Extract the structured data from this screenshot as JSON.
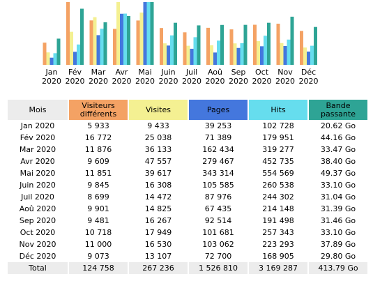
{
  "colors": {
    "visitors": "#F4A264",
    "visits": "#F4F092",
    "pages": "#4477DD",
    "hits": "#66DDEE",
    "bandwidth": "#2EA495"
  },
  "chart_data": {
    "type": "bar",
    "categories": [
      [
        "Jan",
        "2020"
      ],
      [
        "Fév",
        "2020"
      ],
      [
        "Mar",
        "2020"
      ],
      [
        "Avr",
        "2020"
      ],
      [
        "Mai",
        "2020"
      ],
      [
        "Juin",
        "2020"
      ],
      [
        "Juil",
        "2020"
      ],
      [
        "Aoû",
        "2020"
      ],
      [
        "Sep",
        "2020"
      ],
      [
        "Oct",
        "2020"
      ],
      [
        "Nov",
        "2020"
      ],
      [
        "Déc",
        "2020"
      ]
    ],
    "series": [
      {
        "key": "visitors",
        "values": [
          5933,
          16772,
          11876,
          9609,
          11851,
          9845,
          8699,
          9901,
          9481,
          10718,
          11000,
          9073
        ]
      },
      {
        "key": "visits",
        "values": [
          9433,
          25038,
          36133,
          47557,
          39617,
          16308,
          14472,
          14825,
          16267,
          17949,
          16530,
          13107
        ]
      },
      {
        "key": "pages",
        "values": [
          39253,
          71389,
          162434,
          279467,
          343314,
          105585,
          87976,
          67435,
          92514,
          101681,
          103062,
          72700
        ]
      },
      {
        "key": "hits",
        "values": [
          102728,
          179951,
          319277,
          452735,
          554569,
          260538,
          244302,
          214148,
          191498,
          257343,
          223293,
          168905
        ]
      },
      {
        "key": "bandwidth",
        "values": [
          20.62,
          44.16,
          33.47,
          38.4,
          49.37,
          33.1,
          31.04,
          31.39,
          31.46,
          33.1,
          37.89,
          29.8
        ]
      }
    ]
  },
  "table": {
    "headers": [
      "Mois",
      "Visiteurs différents",
      "Visites",
      "Pages",
      "Hits",
      "Bande passante"
    ],
    "rows": [
      [
        "Jan 2020",
        "5 933",
        "9 433",
        "39 253",
        "102 728",
        "20.62 Go"
      ],
      [
        "Fév 2020",
        "16 772",
        "25 038",
        "71 389",
        "179 951",
        "44.16 Go"
      ],
      [
        "Mar 2020",
        "11 876",
        "36 133",
        "162 434",
        "319 277",
        "33.47 Go"
      ],
      [
        "Avr 2020",
        "9 609",
        "47 557",
        "279 467",
        "452 735",
        "38.40 Go"
      ],
      [
        "Mai 2020",
        "11 851",
        "39 617",
        "343 314",
        "554 569",
        "49.37 Go"
      ],
      [
        "Juin 2020",
        "9 845",
        "16 308",
        "105 585",
        "260 538",
        "33.10 Go"
      ],
      [
        "Juil 2020",
        "8 699",
        "14 472",
        "87 976",
        "244 302",
        "31.04 Go"
      ],
      [
        "Aoû 2020",
        "9 901",
        "14 825",
        "67 435",
        "214 148",
        "31.39 Go"
      ],
      [
        "Sep 2020",
        "9 481",
        "16 267",
        "92 514",
        "191 498",
        "31.46 Go"
      ],
      [
        "Oct 2020",
        "10 718",
        "17 949",
        "101 681",
        "257 343",
        "33.10 Go"
      ],
      [
        "Nov 2020",
        "11 000",
        "16 530",
        "103 062",
        "223 293",
        "37.89 Go"
      ],
      [
        "Déc 2020",
        "9 073",
        "13 107",
        "72 700",
        "168 905",
        "29.80 Go"
      ]
    ],
    "total": [
      "Total",
      "124 758",
      "267 236",
      "1 526 810",
      "3 169 287",
      "413.79 Go"
    ]
  }
}
